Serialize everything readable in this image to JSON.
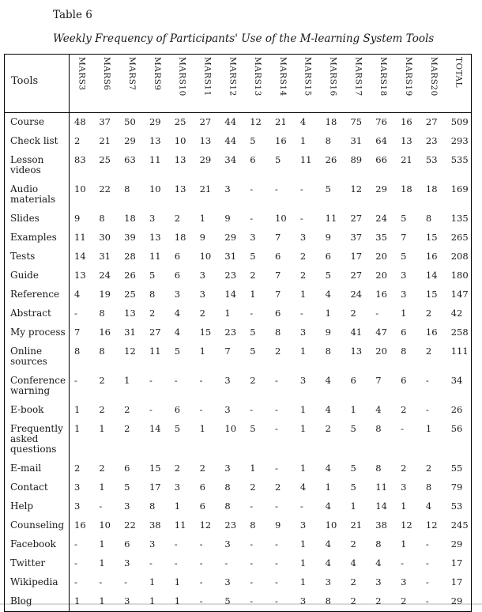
{
  "caption": {
    "label": "Table 6",
    "title": "Weekly Frequency of Participants' Use of the M-learning System Tools"
  },
  "table": {
    "corner_header": "Tools",
    "columns": [
      "MARS3",
      "MARS6",
      "MARS7",
      "MARS9",
      "MARS10",
      "MARS11",
      "MARS12",
      "MARS13",
      "MARS14",
      "MARS15",
      "MARS16",
      "MARS17",
      "MARS18",
      "MARS19",
      "MARS20",
      "TOTAL"
    ],
    "rows": [
      {
        "tool": "Course",
        "values": [
          "48",
          "37",
          "50",
          "29",
          "25",
          "27",
          "44",
          "12",
          "21",
          "4",
          "18",
          "75",
          "76",
          "16",
          "27",
          "509"
        ]
      },
      {
        "tool": "Check list",
        "values": [
          "2",
          "21",
          "29",
          "13",
          "10",
          "13",
          "44",
          "5",
          "16",
          "1",
          "8",
          "31",
          "64",
          "13",
          "23",
          "293"
        ]
      },
      {
        "tool": "Lesson videos",
        "values": [
          "83",
          "25",
          "63",
          "11",
          "13",
          "29",
          "34",
          "6",
          "5",
          "11",
          "26",
          "89",
          "66",
          "21",
          "53",
          "535"
        ]
      },
      {
        "tool": "Audio materials",
        "values": [
          "10",
          "22",
          "8",
          "10",
          "13",
          "21",
          "3",
          "-",
          "-",
          "-",
          "5",
          "12",
          "29",
          "18",
          "18",
          "169"
        ]
      },
      {
        "tool": "Slides",
        "values": [
          "9",
          "8",
          "18",
          "3",
          "2",
          "1",
          "9",
          "-",
          "10",
          "-",
          "11",
          "27",
          "24",
          "5",
          "8",
          "135"
        ]
      },
      {
        "tool": "Examples",
        "values": [
          "11",
          "30",
          "39",
          "13",
          "18",
          "9",
          "29",
          "3",
          "7",
          "3",
          "9",
          "37",
          "35",
          "7",
          "15",
          "265"
        ]
      },
      {
        "tool": "Tests",
        "values": [
          "14",
          "31",
          "28",
          "11",
          "6",
          "10",
          "31",
          "5",
          "6",
          "2",
          "6",
          "17",
          "20",
          "5",
          "16",
          "208"
        ]
      },
      {
        "tool": "Guide",
        "values": [
          "13",
          "24",
          "26",
          "5",
          "6",
          "3",
          "23",
          "2",
          "7",
          "2",
          "5",
          "27",
          "20",
          "3",
          "14",
          "180"
        ]
      },
      {
        "tool": "Reference",
        "values": [
          "4",
          "19",
          "25",
          "8",
          "3",
          "3",
          "14",
          "1",
          "7",
          "1",
          "4",
          "24",
          "16",
          "3",
          "15",
          "147"
        ]
      },
      {
        "tool": "Abstract",
        "values": [
          "-",
          "8",
          "13",
          "2",
          "4",
          "2",
          "1",
          "-",
          "6",
          "-",
          "1",
          "2",
          "-",
          "1",
          "2",
          "42"
        ]
      },
      {
        "tool": "My process",
        "values": [
          "7",
          "16",
          "31",
          "27",
          "4",
          "15",
          "23",
          "5",
          "8",
          "3",
          "9",
          "41",
          "47",
          "6",
          "16",
          "258"
        ]
      },
      {
        "tool": "Online sources",
        "values": [
          "8",
          "8",
          "12",
          "11",
          "5",
          "1",
          "7",
          "5",
          "2",
          "1",
          "8",
          "13",
          "20",
          "8",
          "2",
          "111"
        ]
      },
      {
        "tool": "Conference warning",
        "values": [
          "-",
          "2",
          "1",
          "-",
          "-",
          "-",
          "3",
          "2",
          "-",
          "3",
          "4",
          "6",
          "7",
          "6",
          "-",
          "34"
        ]
      },
      {
        "tool": "E-book",
        "values": [
          "1",
          "2",
          "2",
          "-",
          "6",
          "-",
          "3",
          "-",
          "-",
          "1",
          "4",
          "1",
          "4",
          "2",
          "-",
          "26"
        ]
      },
      {
        "tool": "Frequently asked questions",
        "values": [
          "1",
          "1",
          "2",
          "14",
          "5",
          "1",
          "10",
          "5",
          "-",
          "1",
          "2",
          "5",
          "8",
          "-",
          "1",
          "56"
        ]
      },
      {
        "tool": "E-mail",
        "values": [
          "2",
          "2",
          "6",
          "15",
          "2",
          "2",
          "3",
          "1",
          "-",
          "1",
          "4",
          "5",
          "8",
          "2",
          "2",
          "55"
        ]
      },
      {
        "tool": "Contact",
        "values": [
          "3",
          "1",
          "5",
          "17",
          "3",
          "6",
          "8",
          "2",
          "2",
          "4",
          "1",
          "5",
          "11",
          "3",
          "8",
          "79"
        ]
      },
      {
        "tool": "Help",
        "values": [
          "3",
          "-",
          "3",
          "8",
          "1",
          "6",
          "8",
          "-",
          "-",
          "-",
          "4",
          "1",
          "14",
          "1",
          "4",
          "53"
        ]
      },
      {
        "tool": "Counseling",
        "values": [
          "16",
          "10",
          "22",
          "38",
          "11",
          "12",
          "23",
          "8",
          "9",
          "3",
          "10",
          "21",
          "38",
          "12",
          "12",
          "245"
        ]
      },
      {
        "tool": "Facebook",
        "values": [
          "-",
          "1",
          "6",
          "3",
          "-",
          "-",
          "3",
          "-",
          "-",
          "1",
          "4",
          "2",
          "8",
          "1",
          "-",
          "29"
        ]
      },
      {
        "tool": "Twitter",
        "values": [
          "-",
          "1",
          "3",
          "-",
          "-",
          "-",
          "-",
          "-",
          "-",
          "1",
          "4",
          "4",
          "4",
          "-",
          "-",
          "17"
        ]
      },
      {
        "tool": "Wikipedia",
        "values": [
          "-",
          "-",
          "-",
          "1",
          "1",
          "-",
          "3",
          "-",
          "-",
          "1",
          "3",
          "2",
          "3",
          "3",
          "-",
          "17"
        ]
      },
      {
        "tool": "Blog",
        "values": [
          "1",
          "1",
          "3",
          "1",
          "1",
          "-",
          "5",
          "-",
          "-",
          "3",
          "8",
          "2",
          "2",
          "2",
          "-",
          "29"
        ]
      }
    ]
  },
  "colors": {
    "text": "#1a1a1a",
    "table_border": "#000000",
    "page_edge": "#d9d9d9",
    "background": "#ffffff"
  }
}
